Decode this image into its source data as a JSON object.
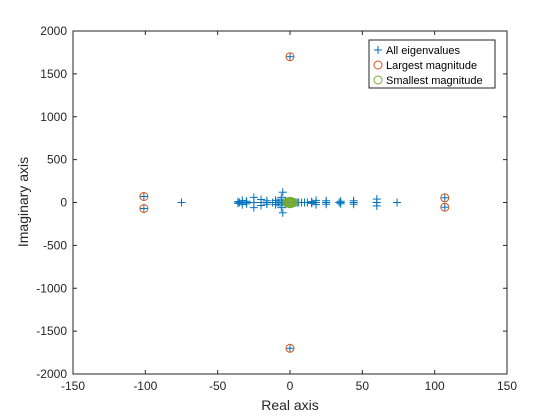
{
  "chart_data": {
    "type": "scatter",
    "xlabel": "Real axis",
    "ylabel": "Imaginary axis",
    "xlim": [
      -150,
      150
    ],
    "ylim": [
      -2000,
      2000
    ],
    "xticks": [
      -150,
      -100,
      -50,
      0,
      50,
      100,
      150
    ],
    "yticks": [
      -2000,
      -1500,
      -1000,
      -500,
      0,
      500,
      1000,
      1500,
      2000
    ],
    "grid": false,
    "legend_location": "top-right",
    "series": [
      {
        "name": "All eigenvalues",
        "marker": "plus",
        "color": "#0072bd",
        "points": [
          [
            0,
            1700
          ],
          [
            0,
            -1700
          ],
          [
            -101,
            70
          ],
          [
            -101,
            -70
          ],
          [
            107,
            55
          ],
          [
            107,
            -55
          ],
          [
            -75,
            0
          ],
          [
            74,
            0
          ],
          [
            60,
            40
          ],
          [
            60,
            -40
          ],
          [
            60,
            0
          ],
          [
            44,
            20
          ],
          [
            44,
            -20
          ],
          [
            44,
            0
          ],
          [
            35,
            15
          ],
          [
            35,
            -15
          ],
          [
            35,
            0
          ],
          [
            34,
            0
          ],
          [
            25,
            20
          ],
          [
            25,
            -20
          ],
          [
            25,
            0
          ],
          [
            18,
            25
          ],
          [
            18,
            -25
          ],
          [
            18,
            0
          ],
          [
            15,
            10
          ],
          [
            15,
            -10
          ],
          [
            15,
            0
          ],
          [
            12,
            0
          ],
          [
            10,
            0
          ],
          [
            8,
            0
          ],
          [
            6,
            0
          ],
          [
            5,
            0
          ],
          [
            4,
            0
          ],
          [
            3,
            0
          ],
          [
            2,
            0
          ],
          [
            1,
            0
          ],
          [
            -1,
            0
          ],
          [
            -2,
            0
          ],
          [
            -3,
            0
          ],
          [
            -4,
            0
          ],
          [
            -5,
            0
          ],
          [
            -6,
            0
          ],
          [
            -7,
            0
          ],
          [
            -8,
            0
          ],
          [
            -9,
            0
          ],
          [
            -3,
            20
          ],
          [
            -3,
            -20
          ],
          [
            -6,
            60
          ],
          [
            -6,
            -60
          ],
          [
            -5,
            120
          ],
          [
            -5,
            -120
          ],
          [
            -9,
            0
          ],
          [
            -10,
            25
          ],
          [
            -10,
            -25
          ],
          [
            -12,
            0
          ],
          [
            -16,
            20
          ],
          [
            -16,
            -20
          ],
          [
            -16,
            0
          ],
          [
            -20,
            35
          ],
          [
            -20,
            -35
          ],
          [
            -20,
            0
          ],
          [
            -25,
            60
          ],
          [
            -25,
            -60
          ],
          [
            -25,
            0
          ],
          [
            -30,
            15
          ],
          [
            -30,
            -15
          ],
          [
            -30,
            0
          ],
          [
            -33,
            25
          ],
          [
            -33,
            -25
          ],
          [
            -35,
            0
          ],
          [
            -36,
            10
          ],
          [
            -36,
            -10
          ]
        ]
      },
      {
        "name": "Largest magnitude",
        "marker": "circle",
        "color": "#d95319",
        "points": [
          [
            0,
            1700
          ],
          [
            0,
            -1700
          ],
          [
            -101,
            70
          ],
          [
            -101,
            -70
          ],
          [
            107,
            55
          ],
          [
            107,
            -55
          ]
        ]
      },
      {
        "name": "Smallest magnitude",
        "marker": "circle",
        "color": "#77ac30",
        "points": [
          [
            -1,
            10
          ],
          [
            -1,
            -10
          ],
          [
            1,
            10
          ],
          [
            1,
            -10
          ],
          [
            0,
            0
          ],
          [
            2,
            5
          ],
          [
            -2,
            5
          ],
          [
            2,
            -5
          ],
          [
            -2,
            -5
          ],
          [
            0,
            15
          ],
          [
            0,
            -15
          ]
        ]
      }
    ]
  }
}
